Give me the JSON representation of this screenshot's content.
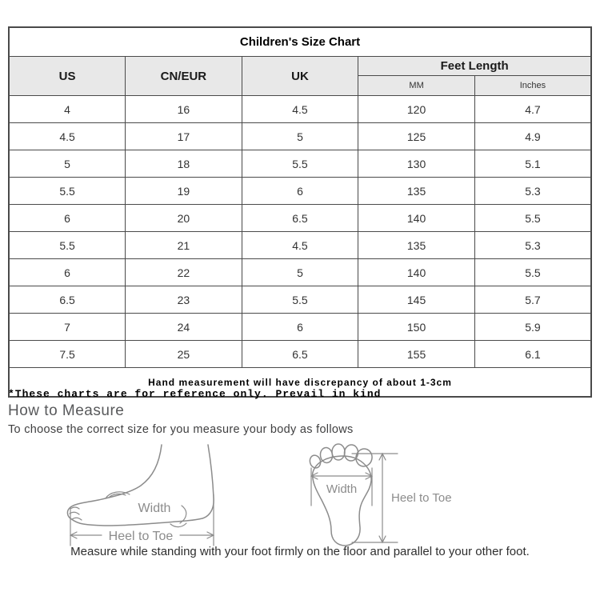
{
  "size_chart": {
    "title": "Children's Size Chart",
    "columns": [
      "US",
      "CN/EUR",
      "UK"
    ],
    "feet_length": {
      "label": "Feet Length",
      "units": [
        "MM",
        "Inches"
      ]
    },
    "rows": [
      [
        "4",
        "16",
        "4.5",
        "120",
        "4.7"
      ],
      [
        "4.5",
        "17",
        "5",
        "125",
        "4.9"
      ],
      [
        "5",
        "18",
        "5.5",
        "130",
        "5.1"
      ],
      [
        "5.5",
        "19",
        "6",
        "135",
        "5.3"
      ],
      [
        "6",
        "20",
        "6.5",
        "140",
        "5.5"
      ],
      [
        "5.5",
        "21",
        "4.5",
        "135",
        "5.3"
      ],
      [
        "6",
        "22",
        "5",
        "140",
        "5.5"
      ],
      [
        "6.5",
        "23",
        "5.5",
        "145",
        "5.7"
      ],
      [
        "7",
        "24",
        "6",
        "150",
        "5.9"
      ],
      [
        "7.5",
        "25",
        "6.5",
        "155",
        "6.1"
      ]
    ],
    "footnote": "Hand measurement will have discrepancy of about 1-3cm"
  },
  "notes": {
    "reference_note": "*These charts are for reference only. Prevail in kind",
    "how_to_measure_heading": "How to Measure",
    "how_to_measure_sub": "To choose the correct size for you measure your body as follows",
    "bottom_caption": "Measure while standing with your foot firmly on the floor and parallel to your other foot."
  },
  "diagrams": {
    "side_view_foot": {
      "width_label": "Width",
      "length_label": "Heel to Toe"
    },
    "top_view_foot": {
      "width_label": "Width",
      "length_label": "Heel to Toe"
    }
  },
  "colors": {
    "table_border": "#4a4a4a",
    "header_background": "#e8e8e8",
    "heading_gray": "#58595b",
    "diagram_gray": "#8c8c8c"
  }
}
